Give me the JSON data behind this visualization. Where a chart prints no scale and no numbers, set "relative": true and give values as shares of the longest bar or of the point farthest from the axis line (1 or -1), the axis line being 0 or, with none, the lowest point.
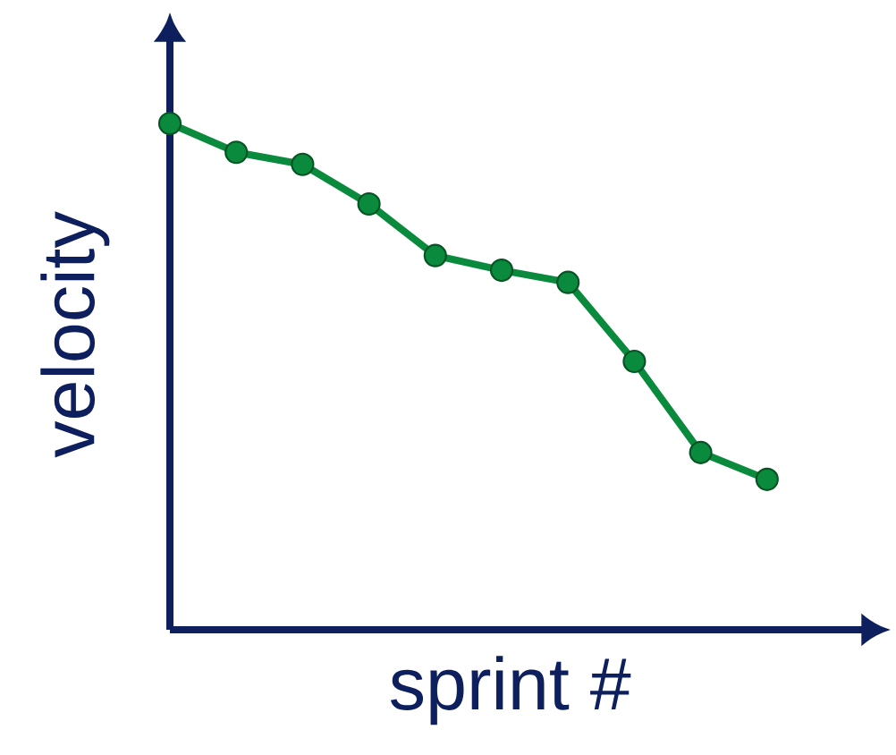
{
  "chart_data": {
    "type": "line",
    "relative": true,
    "xlabel": "sprint #",
    "ylabel": "velocity",
    "marker": "circle",
    "categories": [
      null,
      null,
      null,
      null,
      null,
      null,
      null,
      null,
      null,
      null
    ],
    "series": [
      {
        "color": "#0a8a3c",
        "values": [
          1,
          0.943,
          0.919,
          0.841,
          0.739,
          0.71,
          0.686,
          0.53,
          0.35,
          0.297
        ]
      }
    ]
  }
}
